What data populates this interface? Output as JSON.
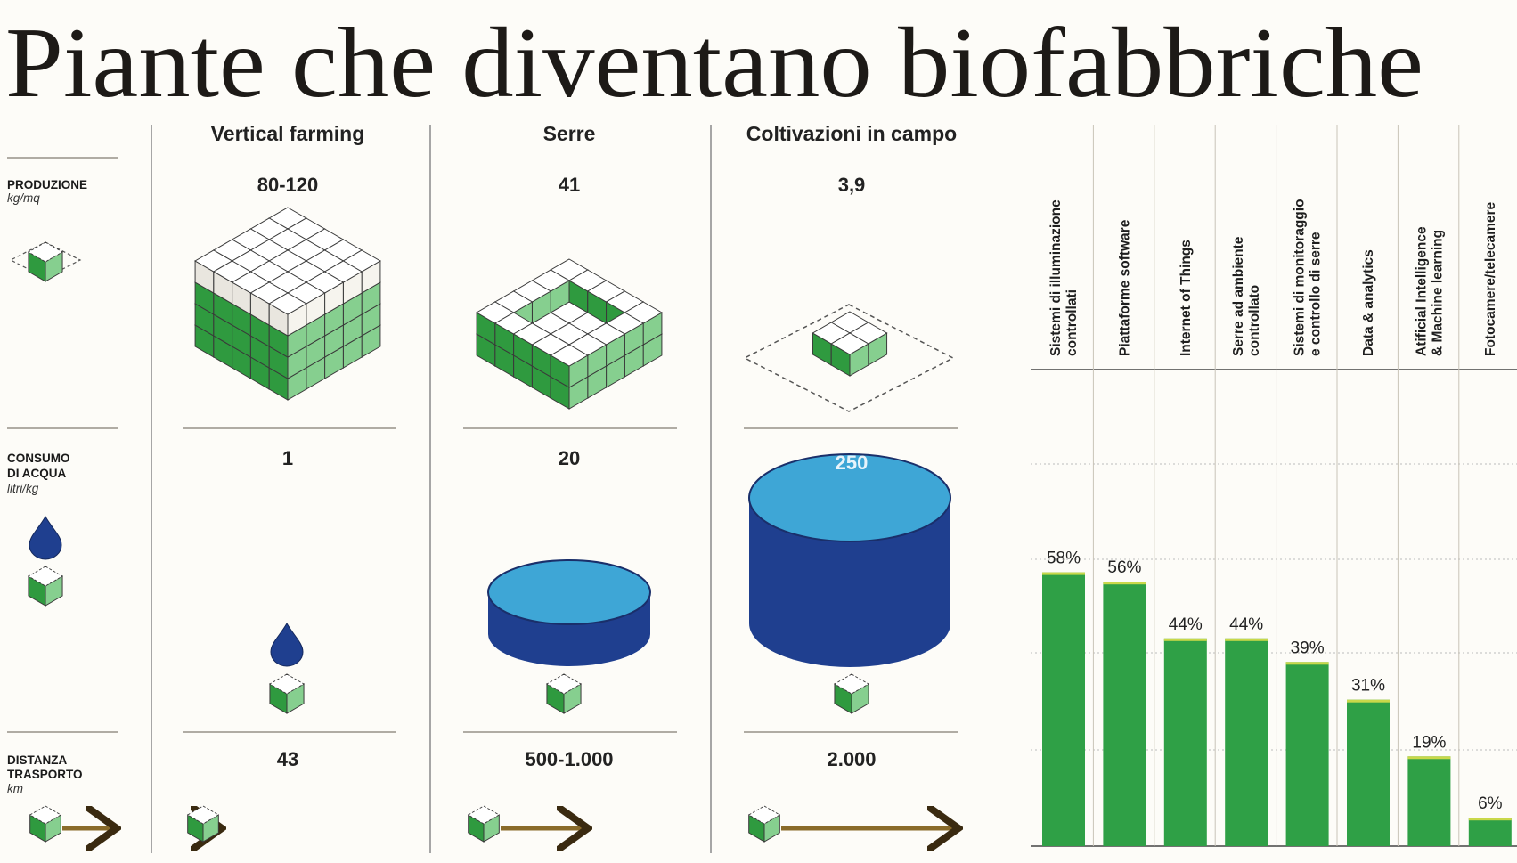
{
  "title": "Piante che diventano biofabbriche",
  "columns": [
    "Vertical farming",
    "Serre",
    "Coltivazioni in campo"
  ],
  "rows": {
    "production": {
      "label": "PRODUZIONE",
      "unit": "kg/mq",
      "values": [
        "80-120",
        "41",
        "3,9"
      ]
    },
    "water": {
      "label_line1": "CONSUMO",
      "label_line2": "DI ACQUA",
      "unit": "litri/kg",
      "values": [
        "1",
        "20",
        "250"
      ]
    },
    "distance": {
      "label_line1": "DISTANZA",
      "label_line2": "TRASPORTO",
      "unit": "km",
      "values": [
        "43",
        "500-1.000",
        "2.000"
      ]
    }
  },
  "colors": {
    "green_dark": "#2f9a3f",
    "green_light": "#86cf8f",
    "water_dark": "#1f3f8f",
    "water_light": "#3ea6d6",
    "bar": "#2fa046",
    "bar_top": "#c9d84a",
    "arrow": "#8a6b2a"
  },
  "chart_data": {
    "type": "bar",
    "title": "",
    "xlabel": "",
    "ylabel": "",
    "ylim": [
      0,
      100
    ],
    "grid": true,
    "categories": [
      [
        "Sistemi di illuminazione",
        "controllati"
      ],
      [
        "Piattaforme software"
      ],
      [
        "Internet of Things"
      ],
      [
        "Serre ad ambiente",
        "controllato"
      ],
      [
        "Sistemi di monitoraggio",
        "e controllo di serre"
      ],
      [
        "Data & analytics"
      ],
      [
        "Atificial Intelligence",
        "& Machine learning"
      ],
      [
        "Fotocamere/telecamere"
      ]
    ],
    "values": [
      58,
      56,
      44,
      44,
      39,
      31,
      19,
      6
    ],
    "value_labels": [
      "58%",
      "56%",
      "44%",
      "44%",
      "39%",
      "31%",
      "19%",
      "6%"
    ]
  }
}
